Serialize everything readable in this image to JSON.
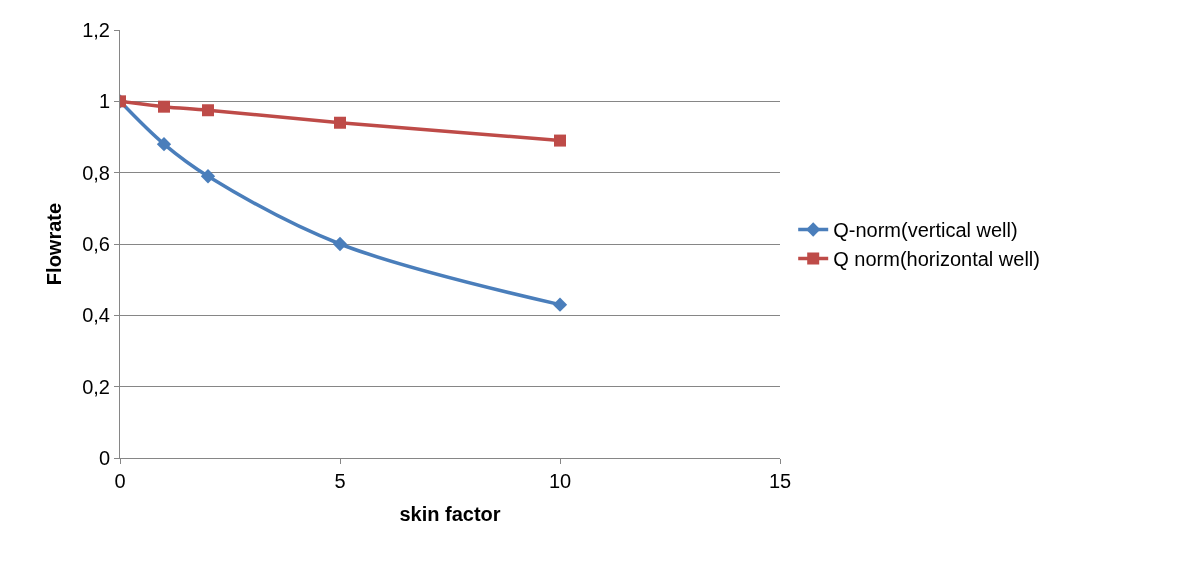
{
  "chart_data": {
    "type": "line",
    "xlabel": "skin factor",
    "ylabel": "Flowrate",
    "x": [
      0,
      1,
      2,
      5,
      10
    ],
    "series": [
      {
        "name": "Q-norm(vertical well)",
        "color": "#4a7ebb",
        "marker": "diamond",
        "values": [
          1,
          0.88,
          0.79,
          0.6,
          0.43
        ]
      },
      {
        "name": "Q norm(horizontal well)",
        "color": "#be4b48",
        "marker": "square",
        "values": [
          1,
          0.985,
          0.975,
          0.94,
          0.89
        ]
      }
    ],
    "xlim": [
      0,
      15
    ],
    "xticks": [
      0,
      5,
      10,
      15
    ],
    "ylim": [
      0,
      1.2
    ],
    "yticks": [
      0,
      {
        "value": 0.2,
        "label": "0,2"
      },
      {
        "value": 0.4,
        "label": "0,4"
      },
      {
        "value": 0.6,
        "label": "0,6"
      },
      {
        "value": 0.8,
        "label": "0,8"
      },
      1,
      {
        "value": 1.2,
        "label": "1,2"
      }
    ],
    "grid": "y",
    "legend": "right",
    "line_style": "solid"
  }
}
